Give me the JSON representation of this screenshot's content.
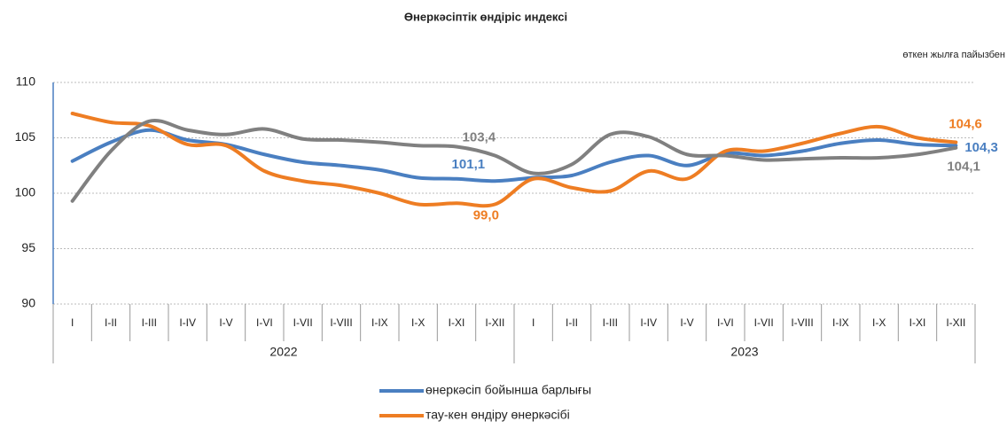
{
  "chart_data": {
    "type": "line",
    "title": "Өнеркәсіптік өндіріс индексі",
    "subtitle": "өткен жылға пайызбен",
    "categories": [
      "I",
      "I-II",
      "I-III",
      "I-IV",
      "I-V",
      "I-VI",
      "I-VII",
      "I-VIII",
      "I-IX",
      "I-X",
      "I-XI",
      "I-XII",
      "I",
      "I-II",
      "I-III",
      "I-IV",
      "I-V",
      "I-VI",
      "I-VII",
      "I-VIII",
      "I-IX",
      "I-X",
      "I-XI",
      "I-XII"
    ],
    "years": [
      "2022",
      "2023"
    ],
    "ylim": [
      90,
      110
    ],
    "yticks": [
      90,
      95,
      100,
      105,
      110
    ],
    "grid": true,
    "series": [
      {
        "name": "өнеркәсіп бойынша барлығы",
        "color": "#4a7fc1",
        "values": [
          102.9,
          104.6,
          105.7,
          104.8,
          104.4,
          103.5,
          102.8,
          102.5,
          102.1,
          101.4,
          101.3,
          101.1,
          101.4,
          101.6,
          102.8,
          103.4,
          102.5,
          103.6,
          103.4,
          103.8,
          104.5,
          104.8,
          104.4,
          104.3
        ],
        "value_labels": [
          null,
          null,
          null,
          null,
          null,
          null,
          null,
          null,
          null,
          null,
          null,
          "101,1",
          null,
          null,
          null,
          null,
          null,
          null,
          null,
          null,
          null,
          null,
          null,
          "104,3"
        ]
      },
      {
        "name": "тау-кен өндіру өнеркәсібі",
        "color": "#ee7d23",
        "values": [
          107.2,
          106.4,
          106.1,
          104.4,
          104.3,
          102.0,
          101.1,
          100.7,
          100.0,
          99.0,
          99.1,
          99.0,
          101.3,
          100.5,
          100.2,
          102.0,
          101.3,
          103.8,
          103.8,
          104.5,
          105.4,
          106.0,
          105.0,
          104.6
        ],
        "value_labels": [
          null,
          null,
          null,
          null,
          null,
          null,
          null,
          null,
          null,
          null,
          null,
          "99,0",
          null,
          null,
          null,
          null,
          null,
          null,
          null,
          null,
          null,
          null,
          null,
          "104,6"
        ]
      },
      {
        "color": "#808080",
        "values": [
          99.3,
          103.8,
          106.5,
          105.7,
          105.3,
          105.8,
          104.9,
          104.8,
          104.6,
          104.3,
          104.2,
          103.4,
          101.8,
          102.6,
          105.3,
          105.1,
          103.5,
          103.4,
          103.0,
          103.1,
          103.2,
          103.2,
          103.5,
          104.1
        ],
        "value_labels": [
          null,
          null,
          null,
          null,
          null,
          null,
          null,
          null,
          null,
          null,
          null,
          "103,4",
          null,
          null,
          null,
          null,
          null,
          null,
          null,
          null,
          null,
          null,
          null,
          "104,1"
        ]
      }
    ]
  }
}
